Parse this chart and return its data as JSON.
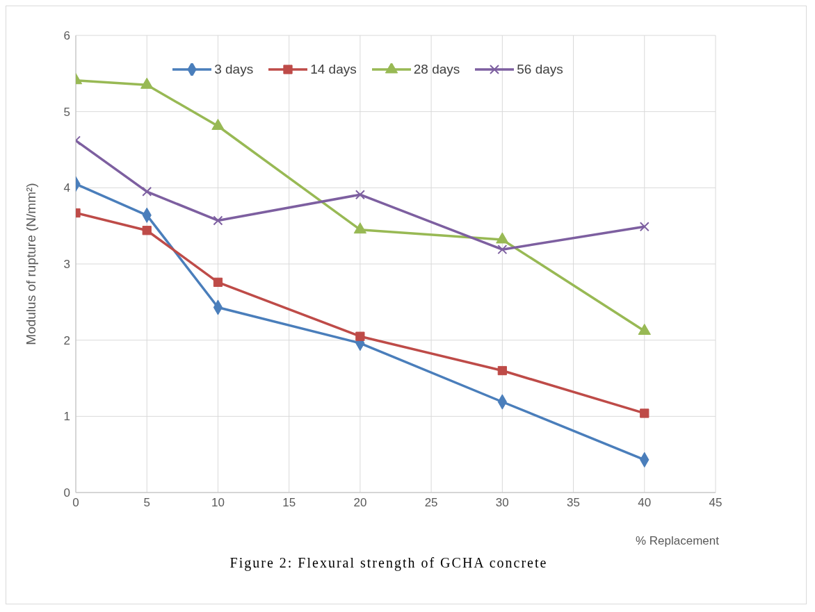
{
  "chart_data": {
    "type": "line",
    "xlabel": "% Replacement",
    "ylabel": "Modulus of rupture (N/mm²)",
    "annotations": [
      "Figure 2: Flexural strength of GCHA concrete"
    ],
    "x": [
      0,
      5,
      10,
      20,
      30,
      40
    ],
    "xlim": [
      0,
      45
    ],
    "xticks": [
      0,
      5,
      10,
      15,
      20,
      25,
      30,
      35,
      40,
      45
    ],
    "ylim": [
      0,
      6
    ],
    "yticks": [
      0,
      1,
      2,
      3,
      4,
      5,
      6
    ],
    "grid": true,
    "legend": "top",
    "series": [
      {
        "name": "3 days",
        "color": "#4a7ebb",
        "marker": "diamond",
        "values": [
          4.05,
          3.64,
          2.43,
          1.96,
          1.19,
          0.43
        ]
      },
      {
        "name": "14 days",
        "color": "#be4b48",
        "marker": "square",
        "values": [
          3.67,
          3.44,
          2.76,
          2.05,
          1.6,
          1.04
        ]
      },
      {
        "name": "28 days",
        "color": "#98b954",
        "marker": "triangle",
        "values": [
          5.41,
          5.35,
          4.81,
          3.45,
          3.32,
          2.12
        ]
      },
      {
        "name": "56 days",
        "color": "#7d5fa0",
        "marker": "cross",
        "values": [
          4.62,
          3.95,
          3.57,
          3.91,
          3.19,
          3.49
        ]
      }
    ]
  }
}
